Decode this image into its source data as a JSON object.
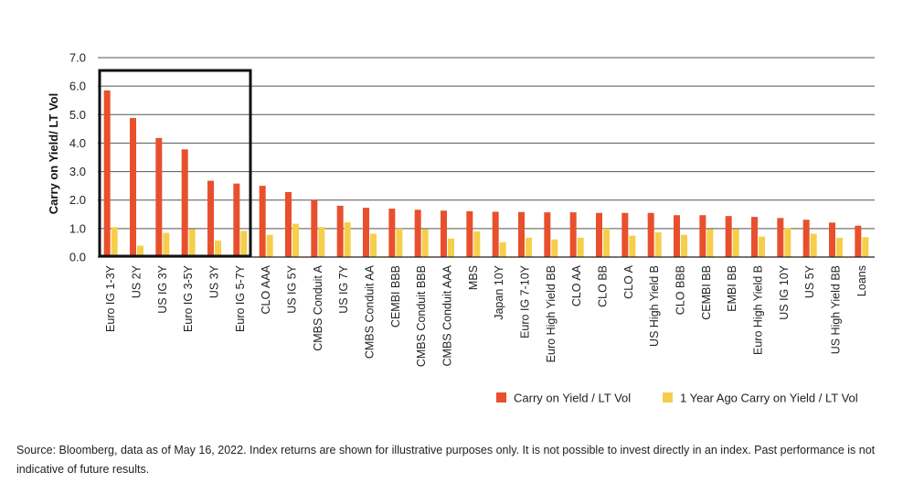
{
  "chart_data": {
    "type": "bar",
    "title": "",
    "xlabel": "",
    "ylabel": "Carry on Yield/ LT Vol",
    "ylim": [
      0,
      7
    ],
    "yticks": [
      "0.0",
      "1.0",
      "2.0",
      "3.0",
      "4.0",
      "5.0",
      "6.0",
      "7.0"
    ],
    "grid": true,
    "legend_position": "bottom-right",
    "highlight_box": {
      "from": "Euro IG 1-3Y",
      "to": "Euro IG 5-7Y"
    },
    "categories": [
      "Euro IG 1-3Y",
      "US 2Y",
      "US IG 3Y",
      "Euro IG 3-5Y",
      "US 3Y",
      "Euro IG 5-7Y",
      "CLO AAA",
      "US IG 5Y",
      "CMBS Conduit A",
      "US IG 7Y",
      "CMBS Conduit AA",
      "CEMBI BBB",
      "CMBS Conduit BBB",
      "CMBS Conduit AAA",
      "MBS",
      "Japan 10Y",
      "Euro IG 7-10Y",
      "Euro High Yield BB",
      "CLO AA",
      "CLO BB",
      "CLO A",
      "US High Yield B",
      "CLO BBB",
      "CEMBI BB",
      "EMBI BB",
      "Euro High Yield B",
      "US IG 10Y",
      "US 5Y",
      "US High Yield BB",
      "Loans"
    ],
    "series": [
      {
        "name": "Carry on Yield / LT Vol",
        "color": "#e8502d",
        "values": [
          5.85,
          4.88,
          4.18,
          3.78,
          2.68,
          2.58,
          2.5,
          2.28,
          2.0,
          1.8,
          1.73,
          1.7,
          1.66,
          1.63,
          1.61,
          1.59,
          1.58,
          1.57,
          1.57,
          1.55,
          1.55,
          1.55,
          1.47,
          1.47,
          1.44,
          1.41,
          1.37,
          1.31,
          1.21,
          1.1
        ]
      },
      {
        "name": "1 Year Ago Carry on Yield / LT Vol",
        "color": "#f5cf4b",
        "values": [
          1.05,
          0.4,
          0.85,
          0.98,
          0.58,
          0.92,
          0.78,
          1.17,
          1.05,
          1.22,
          0.82,
          1.0,
          0.98,
          0.65,
          0.9,
          0.52,
          0.68,
          0.62,
          0.68,
          1.0,
          0.75,
          0.87,
          0.78,
          0.98,
          0.98,
          0.72,
          1.02,
          0.82,
          0.68,
          0.7
        ]
      }
    ]
  },
  "source_note": "Source: Bloomberg, data as of May 16, 2022. Index returns are shown for illustrative purposes only. It is not possible to invest directly in an index. Past performance is not indicative of future results."
}
